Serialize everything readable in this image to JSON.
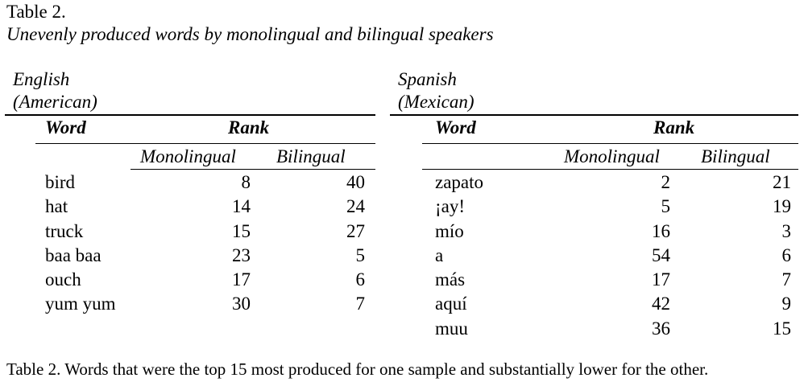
{
  "title": "Table 2.",
  "subtitle": "Unevenly produced words by monolingual and bilingual speakers",
  "panels": [
    {
      "language": "English",
      "variety": "(American)",
      "word_header": "Word",
      "rank_header": "Rank",
      "monolingual_header": "Monolingual",
      "bilingual_header": "Bilingual",
      "rows": [
        {
          "word": "bird",
          "monolingual": "8",
          "bilingual": "40"
        },
        {
          "word": "hat",
          "monolingual": "14",
          "bilingual": "24"
        },
        {
          "word": "truck",
          "monolingual": "15",
          "bilingual": "27"
        },
        {
          "word": "baa baa",
          "monolingual": "23",
          "bilingual": "5"
        },
        {
          "word": "ouch",
          "monolingual": "17",
          "bilingual": "6"
        },
        {
          "word": "yum yum",
          "monolingual": "30",
          "bilingual": "7"
        }
      ]
    },
    {
      "language": "Spanish",
      "variety": "(Mexican)",
      "word_header": "Word",
      "rank_header": "Rank",
      "monolingual_header": "Monolingual",
      "bilingual_header": "Bilingual",
      "rows": [
        {
          "word": "zapato",
          "monolingual": "2",
          "bilingual": "21"
        },
        {
          "word": "¡ay!",
          "monolingual": "5",
          "bilingual": "19"
        },
        {
          "word": "mío",
          "monolingual": "16",
          "bilingual": "3"
        },
        {
          "word": "a",
          "monolingual": "54",
          "bilingual": "6"
        },
        {
          "word": "más",
          "monolingual": "17",
          "bilingual": "7"
        },
        {
          "word": "aquí",
          "monolingual": "42",
          "bilingual": "9"
        },
        {
          "word": "muu",
          "monolingual": "36",
          "bilingual": "15"
        }
      ]
    }
  ],
  "caption": "Table 2. Words that were the top 15 most produced for one sample and substantially lower for the other."
}
